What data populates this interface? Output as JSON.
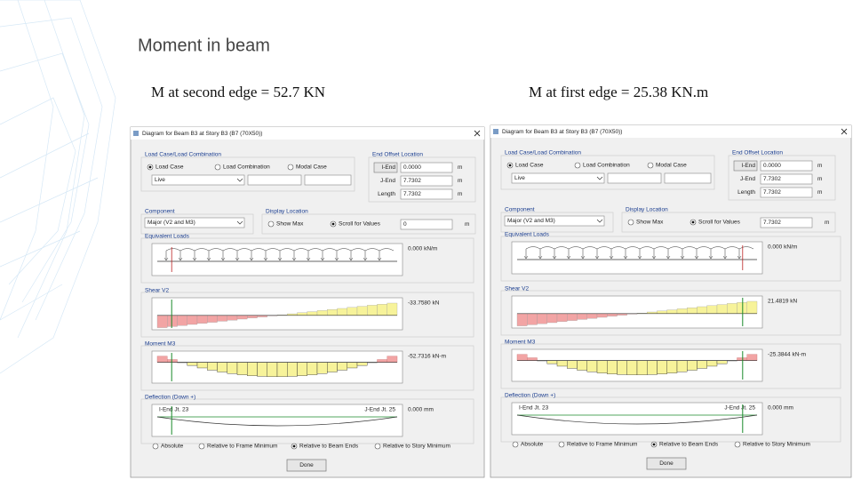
{
  "slide": {
    "title": "Moment in beam",
    "captions": [
      "M at second edge = 52.7 KN",
      "M at first edge = 25.38 KN.m"
    ]
  },
  "dialogs": [
    {
      "title": "Diagram for Beam B3 at Story B3 (B7 (70X50))",
      "load_group": "Load Case/Load Combination",
      "load_options": [
        "Load Case",
        "Load Combination",
        "Modal Case"
      ],
      "load_selected": "Live",
      "offset_group": "End Offset Location",
      "offsets": [
        {
          "label": "I-End",
          "value": "0.0000",
          "unit": "m"
        },
        {
          "label": "J-End",
          "value": "7.7302",
          "unit": "m"
        },
        {
          "label": "Length",
          "value": "7.7302",
          "unit": "m"
        }
      ],
      "component_group": "Component",
      "component_selected": "Major (V2 and M3)",
      "display_group": "Display Location",
      "display_options": [
        "Show Max",
        "Scroll for Values"
      ],
      "display_value": "0",
      "display_unit": "m",
      "panels": [
        {
          "title": "Equivalent Loads",
          "value": "0.000 kN/m"
        },
        {
          "title": "Shear V2",
          "value": "-33.7580 kN"
        },
        {
          "title": "Moment M3",
          "value": "-52.7316 kN-m"
        },
        {
          "title": "Deflection (Down +)",
          "value": "0.000 mm"
        }
      ],
      "deflection_ends": [
        "I-End Jt. 23",
        "J-End Jt. 25"
      ],
      "relative_options": [
        "Absolute",
        "Relative to Frame Minimum",
        "Relative to Beam Ends",
        "Relative to Story Minimum"
      ],
      "done": "Done"
    },
    {
      "title": "Diagram for Beam B3 at Story B3 (B7 (70X50))",
      "load_group": "Load Case/Load Combination",
      "load_options": [
        "Load Case",
        "Load Combination",
        "Modal Case"
      ],
      "load_selected": "Live",
      "offset_group": "End Offset Location",
      "offsets": [
        {
          "label": "I-End",
          "value": "0.0000",
          "unit": "m"
        },
        {
          "label": "J-End",
          "value": "7.7302",
          "unit": "m"
        },
        {
          "label": "Length",
          "value": "7.7302",
          "unit": "m"
        }
      ],
      "component_group": "Component",
      "component_selected": "Major (V2 and M3)",
      "display_group": "Display Location",
      "display_options": [
        "Show Max",
        "Scroll for Values"
      ],
      "display_value": "7.7302",
      "display_unit": "m",
      "panels": [
        {
          "title": "Equivalent Loads",
          "value": "0.000 kN/m"
        },
        {
          "title": "Shear V2",
          "value": "21.4819 kN"
        },
        {
          "title": "Moment M3",
          "value": "-25.3844 kN-m"
        },
        {
          "title": "Deflection (Down +)",
          "value": "0.000 mm"
        }
      ],
      "deflection_ends": [
        "I-End Jt. 23",
        "J-End Jt. 25"
      ],
      "relative_options": [
        "Absolute",
        "Relative to Frame Minimum",
        "Relative to Beam Ends",
        "Relative to Story Minimum"
      ],
      "done": "Done"
    }
  ]
}
